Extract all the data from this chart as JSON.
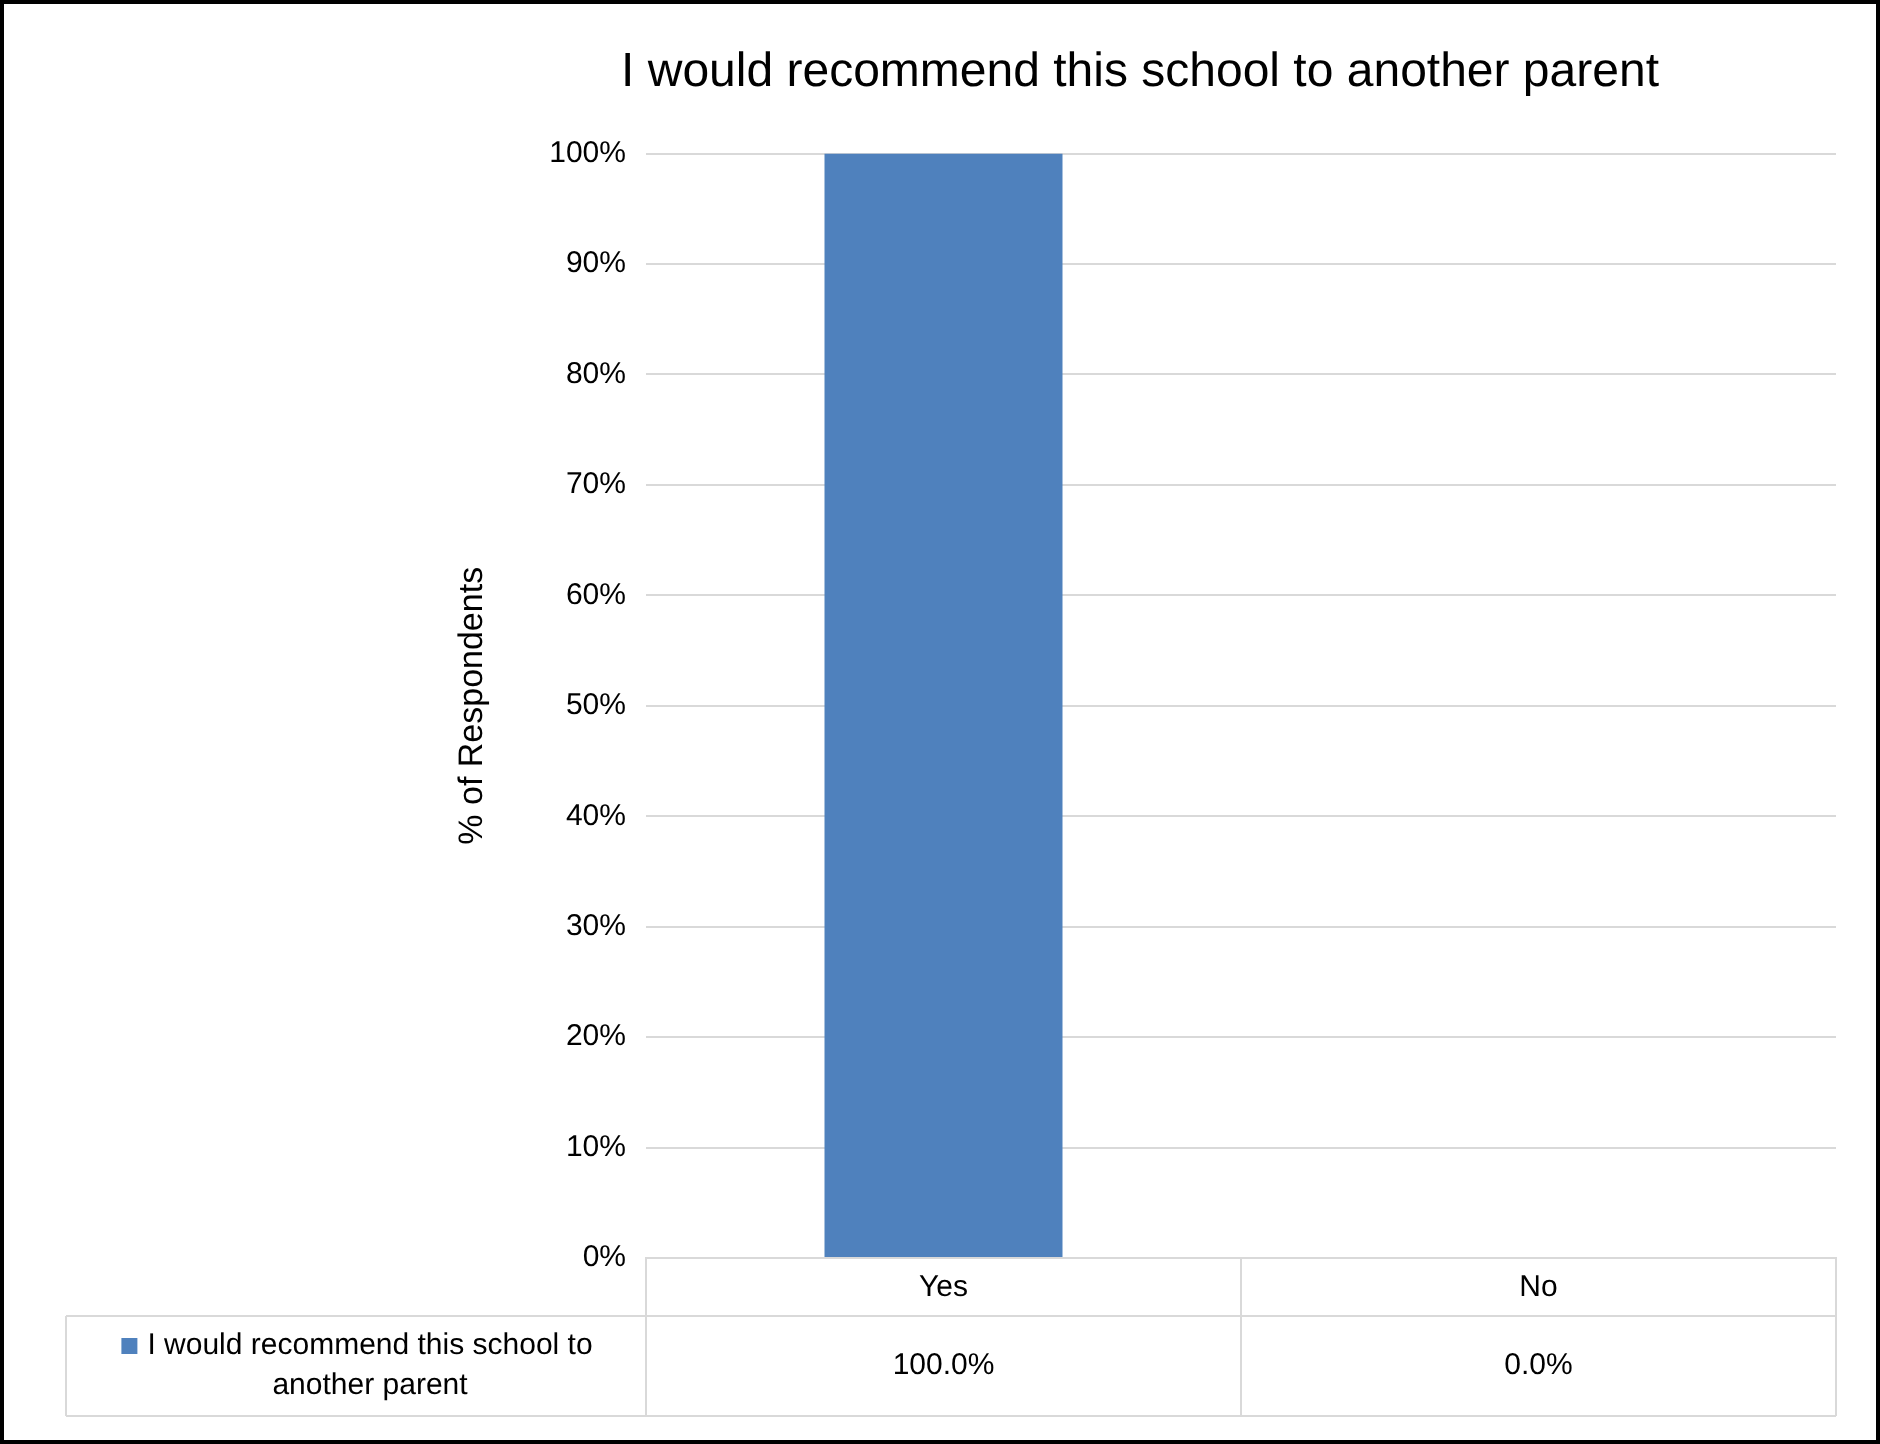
{
  "chart_data": {
    "type": "bar",
    "title": "I would recommend this school to another parent",
    "ylabel": "% of Respondents",
    "categories": [
      "Yes",
      "No"
    ],
    "series": [
      {
        "name": "I would recommend this school to another parent",
        "color": "#4f81bd",
        "values": [
          100,
          0
        ],
        "value_labels": [
          "100.0%",
          "0.0%"
        ]
      }
    ],
    "ylim": [
      0,
      100
    ],
    "yticks": [
      {
        "value": 0,
        "label": "0%"
      },
      {
        "value": 10,
        "label": "10%"
      },
      {
        "value": 20,
        "label": "20%"
      },
      {
        "value": 30,
        "label": "30%"
      },
      {
        "value": 40,
        "label": "40%"
      },
      {
        "value": 50,
        "label": "50%"
      },
      {
        "value": 60,
        "label": "60%"
      },
      {
        "value": 70,
        "label": "70%"
      },
      {
        "value": 80,
        "label": "80%"
      },
      {
        "value": 90,
        "label": "90%"
      },
      {
        "value": 100,
        "label": "100%"
      }
    ],
    "grid": "y"
  }
}
